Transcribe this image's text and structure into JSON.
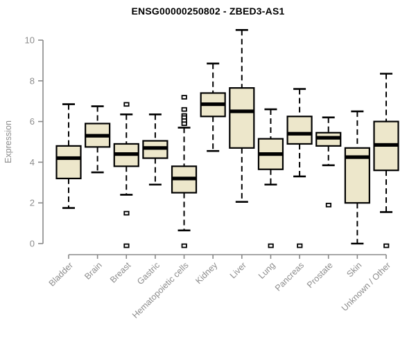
{
  "title": "ENSG00000250802 - ZBED3-AS1",
  "colors": {
    "background": "#FFFFFF",
    "box_fill": "#EDE7CB",
    "box_border": "#000000",
    "median": "#000000",
    "whisker": "#000000",
    "outlier_stroke": "#000000",
    "outlier_fill": "#FFFFFF",
    "axis": "#888888",
    "tick_label": "#8C8C8C",
    "title_color": "#000000"
  },
  "chart_data": {
    "type": "boxplot",
    "title": "ENSG00000250802 - ZBED3-AS1",
    "xlabel": "",
    "ylabel": "Expression",
    "ylim": [
      0,
      10
    ],
    "yticks": [
      0,
      2,
      4,
      6,
      8,
      10
    ],
    "grid": "off",
    "legend": "none",
    "categories": [
      "Bladder",
      "Brain",
      "Breast",
      "Gastric",
      "Hematopoietic cells",
      "Kidney",
      "Liver",
      "Lung",
      "Pancreas",
      "Prostate",
      "Skin",
      "Unknown / Other"
    ],
    "boxes": [
      {
        "label": "Bladder",
        "low": 1.75,
        "q1": 3.2,
        "median": 4.2,
        "q3": 4.8,
        "high": 6.85,
        "outliers": []
      },
      {
        "label": "Brain",
        "low": 3.5,
        "q1": 4.75,
        "median": 5.3,
        "q3": 5.9,
        "high": 6.75,
        "outliers": []
      },
      {
        "label": "Breast",
        "low": 2.4,
        "q1": 3.8,
        "median": 4.4,
        "q3": 4.9,
        "high": 6.35,
        "outliers": [
          6.85,
          1.5,
          -0.1
        ]
      },
      {
        "label": "Gastric",
        "low": 2.9,
        "q1": 4.2,
        "median": 4.7,
        "q3": 5.05,
        "high": 6.35,
        "outliers": []
      },
      {
        "label": "Hematopoietic cells",
        "low": 0.65,
        "q1": 2.5,
        "median": 3.2,
        "q3": 3.8,
        "high": 5.7,
        "outliers": [
          7.2,
          6.6,
          6.3,
          6.2,
          6.05,
          5.9,
          -0.1
        ]
      },
      {
        "label": "Kidney",
        "low": 4.55,
        "q1": 6.25,
        "median": 6.85,
        "q3": 7.4,
        "high": 8.85,
        "outliers": []
      },
      {
        "label": "Liver",
        "low": 2.05,
        "q1": 4.7,
        "median": 6.5,
        "q3": 7.65,
        "high": 10.5,
        "outliers": []
      },
      {
        "label": "Lung",
        "low": 2.9,
        "q1": 3.65,
        "median": 4.4,
        "q3": 5.15,
        "high": 6.6,
        "outliers": [
          -0.1
        ]
      },
      {
        "label": "Pancreas",
        "low": 3.3,
        "q1": 4.9,
        "median": 5.4,
        "q3": 6.25,
        "high": 7.6,
        "outliers": [
          -0.1
        ]
      },
      {
        "label": "Prostate",
        "low": 3.85,
        "q1": 4.8,
        "median": 5.2,
        "q3": 5.45,
        "high": 6.2,
        "outliers": [
          1.9
        ]
      },
      {
        "label": "Skin",
        "low": 0.0,
        "q1": 2.0,
        "median": 4.25,
        "q3": 4.7,
        "high": 6.5,
        "outliers": []
      },
      {
        "label": "Unknown / Other",
        "low": 1.55,
        "q1": 3.6,
        "median": 4.85,
        "q3": 6.0,
        "high": 8.35,
        "outliers": [
          -0.1
        ]
      }
    ]
  }
}
